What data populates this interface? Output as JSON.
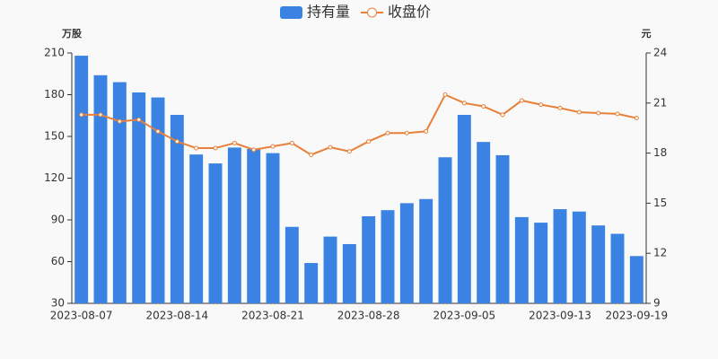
{
  "chart_data": {
    "type": "bar_line",
    "y_label": "万股",
    "y2_label": "元",
    "categories": [
      "2023-08-07",
      null,
      null,
      null,
      null,
      "2023-08-14",
      null,
      null,
      null,
      null,
      "2023-08-21",
      null,
      null,
      null,
      null,
      "2023-08-28",
      null,
      null,
      null,
      null,
      "2023-09-05",
      null,
      null,
      null,
      null,
      "2023-09-13",
      null,
      null,
      null,
      "2023-09-19"
    ],
    "series": [
      {
        "name": "持有量",
        "type": "bar",
        "color": "#3a83e2",
        "values": [
          208,
          194,
          189,
          181.6,
          178,
          165.5,
          137,
          130.6,
          142,
          141,
          138,
          85,
          59,
          78,
          72.6,
          92.6,
          97,
          102,
          105,
          135,
          165.5,
          146,
          136.5,
          92,
          88,
          97.7,
          96,
          86,
          80,
          64
        ]
      },
      {
        "name": "收盘价",
        "type": "line",
        "color": "#e8803a",
        "axis": "y2",
        "values": [
          20.3,
          20.3,
          19.9,
          20.0,
          19.3,
          18.7,
          18.3,
          18.3,
          18.6,
          18.2,
          18.4,
          18.6,
          17.9,
          18.35,
          18.1,
          18.7,
          19.2,
          19.2,
          19.3,
          21.5,
          21.0,
          20.8,
          20.3,
          21.15,
          20.9,
          20.7,
          20.45,
          20.4,
          20.35,
          20.1
        ]
      }
    ],
    "ylim": [
      30,
      210
    ],
    "yticks": [
      30,
      60,
      90,
      120,
      150,
      180,
      210
    ],
    "y2lim": [
      9,
      24
    ],
    "y2ticks": [
      9,
      12,
      15,
      18,
      21,
      24
    ],
    "grid": false,
    "legend": "top"
  }
}
